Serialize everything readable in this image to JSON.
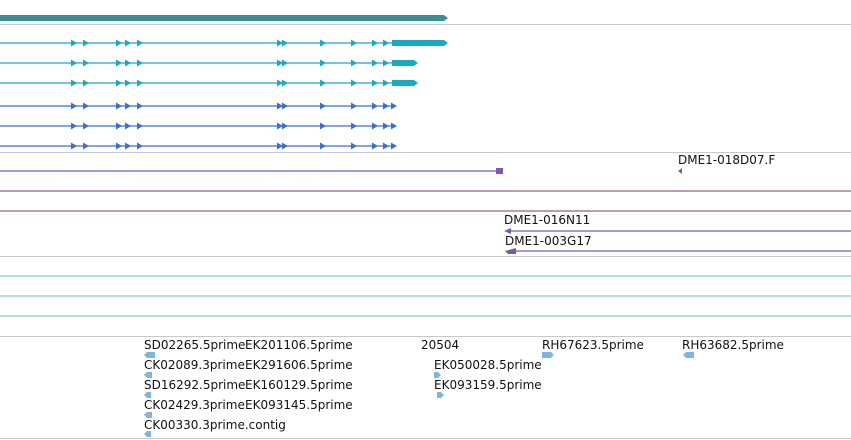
{
  "colors": {
    "divider": "#c8c8c8",
    "gene_bar": "#3a8f8f",
    "transcript_cyan": "#1ba8c4",
    "transcript_blue": "#3a6fd0",
    "clone_purple": "#7a5aa8",
    "clone_line": "#7a3a6a",
    "est_line": "#6fb8c8",
    "est_marker": "#7fb6db",
    "label_text": "#111111"
  },
  "icons": {
    "strand_arrow": "triangle-arrow-icon",
    "clone_end": "clone-end-icon",
    "est_feature": "est-feature-icon"
  },
  "clone_labels": {
    "clone_1": "DME1-018D07.F",
    "clone_2": "DME1-016N11",
    "clone_3": "DME1-003G17"
  },
  "est_labels": {
    "est_1": "SD02265.5prime",
    "est_2": "EK201106.5prime",
    "est_3": "CK02089.3prime",
    "est_4": "EK291606.5prime",
    "est_5": "SD16292.5prime",
    "est_6": "EK160129.5prime",
    "est_7": "CK02429.3prime",
    "est_8": "EK093145.5prime",
    "est_9": "CK00330.3prime.contig",
    "est_10": "20504",
    "est_11": "EK050028.5prime",
    "est_12": "EK093159.5prime",
    "est_13": "RH67623.5prime",
    "est_14": "RH63682.5prime"
  }
}
